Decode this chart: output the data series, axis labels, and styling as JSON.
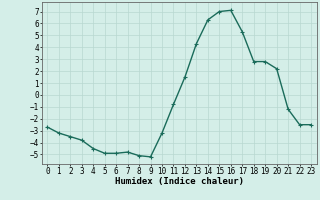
{
  "x": [
    0,
    1,
    2,
    3,
    4,
    5,
    6,
    7,
    8,
    9,
    10,
    11,
    12,
    13,
    14,
    15,
    16,
    17,
    18,
    19,
    20,
    21,
    22,
    23
  ],
  "y": [
    -2.7,
    -3.2,
    -3.5,
    -3.8,
    -4.5,
    -4.9,
    -4.9,
    -4.8,
    -5.1,
    -5.2,
    -3.2,
    -0.8,
    1.5,
    4.3,
    6.3,
    7.0,
    7.1,
    5.3,
    2.8,
    2.8,
    2.2,
    -1.2,
    -2.5,
    -2.5
  ],
  "line_color": "#1a6b5a",
  "marker": "+",
  "markersize": 3,
  "linewidth": 1.0,
  "xlabel": "Humidex (Indice chaleur)",
  "ylim": [
    -5.8,
    7.8
  ],
  "xlim": [
    -0.5,
    23.5
  ],
  "yticks": [
    -5,
    -4,
    -3,
    -2,
    -1,
    0,
    1,
    2,
    3,
    4,
    5,
    6,
    7
  ],
  "xticks": [
    0,
    1,
    2,
    3,
    4,
    5,
    6,
    7,
    8,
    9,
    10,
    11,
    12,
    13,
    14,
    15,
    16,
    17,
    18,
    19,
    20,
    21,
    22,
    23
  ],
  "background_color": "#d4eee8",
  "grid_color": "#b8d8d0",
  "xlabel_fontsize": 6.5,
  "tick_fontsize": 5.5
}
